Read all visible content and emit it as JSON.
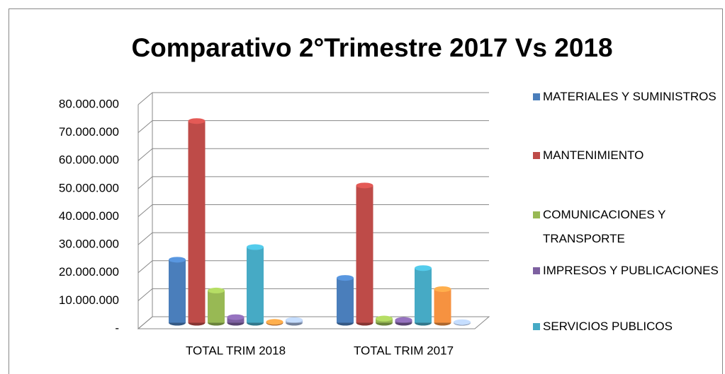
{
  "chart_data": {
    "type": "bar3d",
    "title": "Comparativo 2°Trimestre 2017 Vs 2018",
    "categories": [
      "TOTAL TRIM 2018",
      "TOTAL TRIM 2017"
    ],
    "series": [
      {
        "name": "MATERIALES Y SUMINISTROS",
        "color": "#4a7ebb",
        "values": [
          22500000,
          16000000
        ]
      },
      {
        "name": "MANTENIMIENTO",
        "color": "#be4b48",
        "values": [
          72000000,
          49000000
        ]
      },
      {
        "name": "COMUNICACIONES Y TRANSPORTE",
        "color": "#98b954",
        "values": [
          11500000,
          1500000
        ]
      },
      {
        "name": "IMPRESOS Y PUBLICACIONES",
        "color": "#7d60a0",
        "values": [
          2000000,
          1000000
        ]
      },
      {
        "name": "SERVICIOS PUBLICOS",
        "color": "#46aac5",
        "values": [
          27000000,
          19500000
        ]
      },
      {
        "color": "#f69240",
        "values": [
          300000,
          12000000
        ]
      },
      {
        "color": "#a5b9dd",
        "values": [
          1000000,
          200000
        ]
      }
    ],
    "ylim": [
      0,
      80000000
    ],
    "yticks": [
      {
        "value": 0,
        "label": "-"
      },
      {
        "value": 10000000,
        "label": "10.000.000"
      },
      {
        "value": 20000000,
        "label": "20.000.000"
      },
      {
        "value": 30000000,
        "label": "30.000.000"
      },
      {
        "value": 40000000,
        "label": "40.000.000"
      },
      {
        "value": 50000000,
        "label": "50.000.000"
      },
      {
        "value": 60000000,
        "label": "60.000.000"
      },
      {
        "value": 70000000,
        "label": "70.000.000"
      },
      {
        "value": 80000000,
        "label": "80.000.000"
      }
    ],
    "grid": true
  }
}
